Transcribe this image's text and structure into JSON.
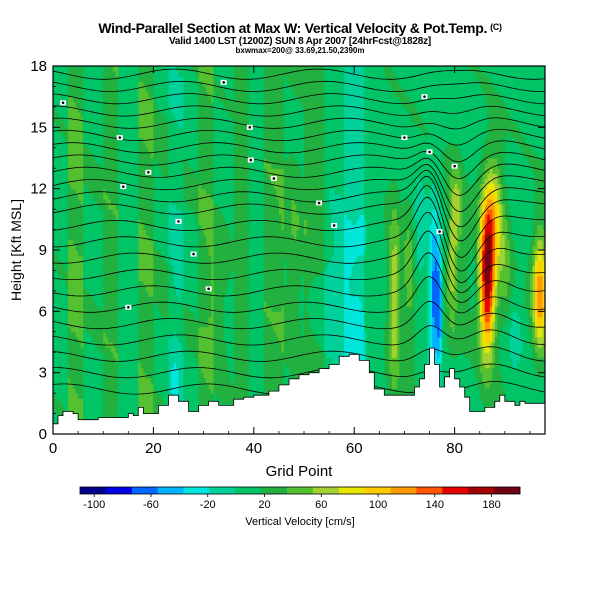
{
  "header": {
    "title": "Wind-Parallel Section at Max W: Vertical Velocity & Pot.Temp.",
    "copyright": "(C)",
    "subtitle": "Valid 1400 LST (1200Z) SUN 8 Apr 2007 [24hrFcst@1828z]",
    "subtitle2": "bxwmax=200@ 33.69,21.50,2390m"
  },
  "chart_data": {
    "type": "heatmap",
    "title": "Wind-Parallel Section at Max W: Vertical Velocity & Pot.Temp.",
    "xlabel": "Grid Point",
    "ylabel": "Height [Kft MSL]",
    "xlim": [
      0,
      98
    ],
    "ylim": [
      0,
      18
    ],
    "xticks": [
      0,
      20,
      40,
      60,
      80
    ],
    "yticks": [
      0,
      3,
      6,
      9,
      12,
      15,
      18
    ],
    "colorbar": {
      "label": "Vertical Velocity [cm/s]",
      "ticks": [
        -100,
        -60,
        -20,
        20,
        60,
        100,
        140,
        180
      ],
      "range": [
        -110,
        200
      ],
      "colors": [
        "#00008c",
        "#0000e6",
        "#0066ff",
        "#00b4ff",
        "#00e6dc",
        "#00d09a",
        "#00c466",
        "#22b040",
        "#55c030",
        "#a4d030",
        "#e6e600",
        "#ffcc00",
        "#ff9900",
        "#ff5500",
        "#e60000",
        "#a00000",
        "#700014"
      ]
    },
    "terrain": {
      "x": [
        0,
        1,
        1,
        2,
        2,
        4,
        4,
        5,
        5,
        9,
        9,
        15,
        15,
        16,
        16,
        17,
        17,
        18,
        18,
        21,
        21,
        23,
        23,
        25,
        25,
        27,
        27,
        29,
        29,
        31,
        31,
        33,
        33,
        36,
        36,
        38,
        38,
        40,
        40,
        43,
        43,
        45,
        45,
        47,
        47,
        49,
        49,
        51,
        51,
        53,
        53,
        55,
        55,
        57,
        57,
        59,
        59,
        61,
        61,
        63,
        63,
        64,
        64,
        66,
        66,
        72,
        72,
        73,
        73,
        74,
        74,
        75,
        75,
        76,
        76,
        77,
        77,
        78,
        78,
        79,
        79,
        80,
        80,
        81,
        81,
        82,
        82,
        83,
        83,
        86,
        86,
        88,
        88,
        89,
        89,
        90,
        90,
        92,
        92,
        93,
        93,
        94,
        94,
        98
      ],
      "y": [
        0.5,
        0.5,
        0.9,
        0.9,
        1.1,
        1.1,
        1.0,
        1.0,
        0.7,
        0.7,
        0.8,
        0.8,
        1.0,
        1.0,
        0.9,
        0.9,
        1.3,
        1.3,
        1.0,
        1.0,
        1.4,
        1.4,
        1.9,
        1.9,
        1.6,
        1.6,
        1.1,
        1.1,
        1.4,
        1.4,
        1.6,
        1.6,
        1.4,
        1.4,
        1.7,
        1.7,
        1.8,
        1.8,
        1.9,
        1.9,
        2.1,
        2.1,
        2.4,
        2.4,
        2.7,
        2.7,
        2.9,
        2.9,
        3.0,
        3.0,
        3.2,
        3.2,
        3.4,
        3.4,
        3.8,
        3.8,
        3.9,
        3.9,
        3.6,
        3.6,
        3.0,
        3.0,
        2.2,
        2.2,
        1.9,
        1.9,
        2.3,
        2.3,
        2.7,
        2.7,
        3.4,
        3.4,
        4.2,
        4.2,
        3.4,
        3.4,
        2.3,
        2.3,
        2.8,
        2.8,
        3.2,
        3.2,
        2.7,
        2.7,
        2.3,
        2.3,
        1.8,
        1.8,
        1.1,
        1.1,
        1.3,
        1.3,
        1.6,
        1.6,
        1.9,
        1.9,
        1.6,
        1.6,
        1.4,
        1.4,
        1.6,
        1.6,
        1.5,
        1.5
      ]
    },
    "wcolumns": [
      {
        "x0": 0,
        "x1": 3,
        "w": 12
      },
      {
        "x0": 3,
        "x1": 6,
        "w": 38
      },
      {
        "x0": 6,
        "x1": 10,
        "w": 14
      },
      {
        "x0": 10,
        "x1": 13,
        "w": 30
      },
      {
        "x0": 13,
        "x1": 17,
        "w": 10
      },
      {
        "x0": 17,
        "x1": 20,
        "w": 34
      },
      {
        "x0": 20,
        "x1": 23,
        "w": 16
      },
      {
        "x0": 23,
        "x1": 26,
        "w": 2
      },
      {
        "x0": 26,
        "x1": 29,
        "w": 14
      },
      {
        "x0": 29,
        "x1": 32,
        "w": 32
      },
      {
        "x0": 32,
        "x1": 36,
        "w": 12
      },
      {
        "x0": 36,
        "x1": 39,
        "w": 26
      },
      {
        "x0": 39,
        "x1": 42,
        "w": 8
      },
      {
        "x0": 42,
        "x1": 46,
        "w": 30
      },
      {
        "x0": 46,
        "x1": 50,
        "w": 14
      },
      {
        "x0": 50,
        "x1": 54,
        "w": 24
      },
      {
        "x0": 54,
        "x1": 58,
        "w": 6
      },
      {
        "x0": 58,
        "x1": 62,
        "w": -8
      },
      {
        "x0": 62,
        "x1": 66,
        "w": 10
      },
      {
        "x0": 66,
        "x1": 98,
        "w": 12
      }
    ],
    "wfeatures": [
      {
        "x": 24.3,
        "y": 2.6,
        "sx": 0.9,
        "sy": 1.2,
        "w": -22
      },
      {
        "x": 25.0,
        "y": 8.0,
        "sx": 0.7,
        "sy": 1.5,
        "w": -12
      },
      {
        "x": 33.0,
        "y": 6.5,
        "sx": 1.3,
        "sy": 2.5,
        "w": 16
      },
      {
        "x": 48.0,
        "y": 9.5,
        "sx": 1.5,
        "sy": 3.0,
        "w": 20
      },
      {
        "x": 55.0,
        "y": 6.5,
        "sx": 2.2,
        "sy": 1.4,
        "w": -20
      },
      {
        "x": 58.0,
        "y": 8.0,
        "sx": 2.0,
        "sy": 2.0,
        "w": -12
      },
      {
        "x": 61.0,
        "y": 5.0,
        "sx": 1.5,
        "sy": 1.5,
        "w": -22
      },
      {
        "x": 68.0,
        "y": 6.5,
        "sx": 0.8,
        "sy": 3.0,
        "w": 60
      },
      {
        "x": 71.0,
        "y": 7.5,
        "sx": 0.9,
        "sy": 2.5,
        "w": 35
      },
      {
        "x": 73.0,
        "y": 9.5,
        "sx": 0.9,
        "sy": 1.8,
        "w": -30
      },
      {
        "x": 76.0,
        "y": 7.0,
        "sx": 0.8,
        "sy": 2.6,
        "w": -80
      },
      {
        "x": 77.0,
        "y": 6.0,
        "sx": 0.4,
        "sy": 1.8,
        "w": -50
      },
      {
        "x": 79.5,
        "y": 8.5,
        "sx": 0.7,
        "sy": 2.5,
        "w": 50
      },
      {
        "x": 80.5,
        "y": 11.0,
        "sx": 0.8,
        "sy": 1.5,
        "w": 40
      },
      {
        "x": 82.0,
        "y": 8.0,
        "sx": 0.9,
        "sy": 2.0,
        "w": 15
      },
      {
        "x": 86.5,
        "y": 7.8,
        "sx": 1.1,
        "sy": 2.6,
        "w": 175
      },
      {
        "x": 88.0,
        "y": 11.0,
        "sx": 1.2,
        "sy": 1.8,
        "w": 60
      },
      {
        "x": 90.0,
        "y": 8.0,
        "sx": 1.0,
        "sy": 2.0,
        "w": 30
      },
      {
        "x": 97.0,
        "y": 7.0,
        "sx": 1.0,
        "sy": 2.0,
        "w": 110
      },
      {
        "x": 92.0,
        "y": 5.0,
        "sx": 1.0,
        "sy": 1.5,
        "w": -18
      },
      {
        "x": 62.0,
        "y": 10.5,
        "sx": 1.0,
        "sy": 1.0,
        "w": -10
      }
    ],
    "theta_baselines": [
      2.2,
      3.0,
      3.8,
      4.6,
      5.4,
      6.2,
      7.0,
      7.8,
      8.6,
      9.4,
      10.2,
      11.0,
      11.6,
      12.2,
      12.8,
      13.4,
      14.0,
      14.6,
      15.2,
      15.8,
      16.4,
      17.0,
      17.6
    ],
    "contour_labels": [
      {
        "x": 2.0,
        "y": 16.2
      },
      {
        "x": 13.3,
        "y": 14.5
      },
      {
        "x": 34.0,
        "y": 17.2
      },
      {
        "x": 39.2,
        "y": 15.0
      },
      {
        "x": 74.0,
        "y": 16.5
      },
      {
        "x": 70.0,
        "y": 14.5
      },
      {
        "x": 75.0,
        "y": 13.8
      },
      {
        "x": 39.4,
        "y": 13.4
      },
      {
        "x": 19.0,
        "y": 12.8
      },
      {
        "x": 14.0,
        "y": 12.1
      },
      {
        "x": 44.0,
        "y": 12.5
      },
      {
        "x": 53.0,
        "y": 11.3
      },
      {
        "x": 80.0,
        "y": 13.1
      },
      {
        "x": 25.0,
        "y": 10.4
      },
      {
        "x": 56.0,
        "y": 10.2
      },
      {
        "x": 77.0,
        "y": 9.9
      },
      {
        "x": 28.0,
        "y": 8.8
      },
      {
        "x": 31.0,
        "y": 7.1
      },
      {
        "x": 15.0,
        "y": 6.2
      }
    ]
  }
}
